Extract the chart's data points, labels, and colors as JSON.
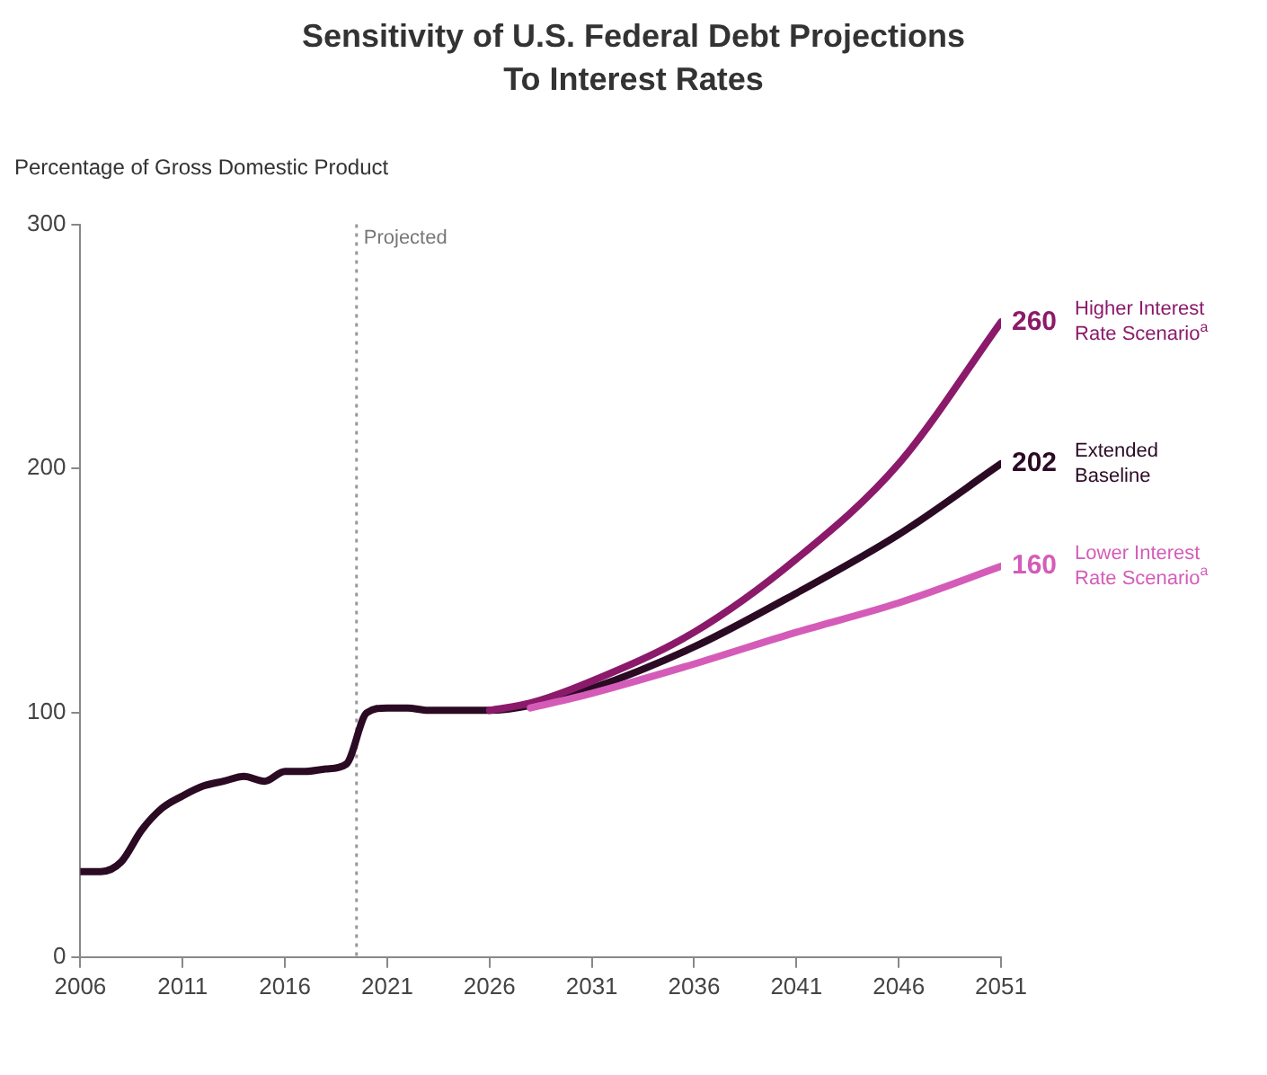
{
  "chart_data": {
    "type": "line",
    "title": "Sensitivity of U.S. Federal Debt Projections\nTo Interest Rates",
    "ylabel": "Percentage of Gross Domestic Product",
    "xlim": [
      2006,
      2051
    ],
    "xticks": [
      2006,
      2011,
      2016,
      2021,
      2026,
      2031,
      2036,
      2041,
      2046,
      2051
    ],
    "ylim": [
      0,
      300
    ],
    "yticks": [
      0,
      100,
      200,
      300
    ],
    "grid": false,
    "legend": false,
    "marker": "none",
    "line_style": "solid",
    "ref_lines": [
      {
        "axis": "x",
        "value": 2019.5,
        "label": "Projected",
        "line_style": "dotted",
        "color": "#999999"
      }
    ],
    "series": [
      {
        "name": "Extended Baseline",
        "color": "#2b0a24",
        "x": [
          2006,
          2007,
          2008,
          2009,
          2010,
          2011,
          2012,
          2013,
          2014,
          2015,
          2016,
          2017,
          2018,
          2019,
          2020,
          2021,
          2022,
          2023,
          2024,
          2025,
          2026,
          2028,
          2031,
          2036,
          2041,
          2046,
          2051
        ],
        "values": [
          35,
          35,
          39,
          52,
          61,
          66,
          70,
          72,
          74,
          72,
          76,
          76,
          77,
          79,
          100,
          102,
          102,
          101,
          101,
          101,
          101,
          103,
          110,
          127,
          149,
          173,
          202
        ],
        "value_labels": [
          null,
          null,
          null,
          null,
          null,
          null,
          null,
          null,
          null,
          null,
          null,
          null,
          null,
          null,
          null,
          null,
          null,
          null,
          null,
          null,
          null,
          null,
          null,
          null,
          null,
          null,
          "202"
        ]
      },
      {
        "name": "Higher Interest Rate Scenario$^{a}$",
        "color": "#8b1a6b",
        "x": [
          2026,
          2028,
          2031,
          2036,
          2041,
          2046,
          2051
        ],
        "values": [
          101,
          104,
          113,
          133,
          163,
          202,
          260
        ],
        "value_labels": [
          null,
          null,
          null,
          null,
          null,
          null,
          "260"
        ]
      },
      {
        "name": "Lower Interest Rate Scenario$^{a}$",
        "color": "#d45cb8",
        "x": [
          2028,
          2031,
          2036,
          2041,
          2046,
          2051
        ],
        "values": [
          102,
          108,
          120,
          133,
          145,
          160
        ],
        "value_labels": [
          null,
          null,
          null,
          null,
          null,
          "160"
        ]
      }
    ]
  }
}
